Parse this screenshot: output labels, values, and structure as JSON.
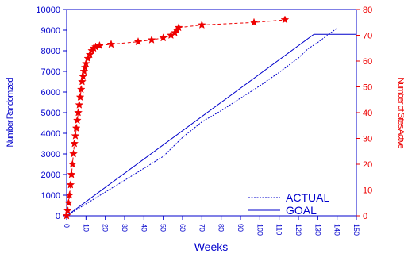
{
  "chart_data": {
    "type": "line",
    "xlabel": "Weeks",
    "ylabel_left": "Number Randomized",
    "ylabel_right": "Number of Sites Active",
    "xlim": [
      0,
      150
    ],
    "ylim_left": [
      0,
      10000
    ],
    "ylim_right": [
      0,
      80
    ],
    "x_ticks": [
      "0",
      "10",
      "20",
      "30",
      "40",
      "50",
      "60",
      "70",
      "80",
      "90",
      "100",
      "110",
      "120",
      "130",
      "140",
      "150"
    ],
    "y_ticks_left": [
      "0",
      "1000",
      "2000",
      "3000",
      "4000",
      "5000",
      "6000",
      "7000",
      "8000",
      "9000",
      "10000"
    ],
    "y_ticks_right": [
      "0",
      "10",
      "20",
      "30",
      "40",
      "50",
      "60",
      "70",
      "80"
    ],
    "legend_position": "bottom-right",
    "colors": {
      "randomized_axis": "#0000cc",
      "sites_axis": "#ee0000",
      "frame": "#0000cc"
    },
    "series": [
      {
        "name": "ACTUAL",
        "axis": "left",
        "style": "dashed",
        "color": "#0000cc",
        "x": [
          0,
          10,
          20,
          30,
          40,
          50,
          60,
          70,
          80,
          90,
          100,
          110,
          120,
          125,
          130,
          135,
          140
        ],
        "y": [
          0,
          580,
          1150,
          1720,
          2300,
          2880,
          3800,
          4550,
          5100,
          5700,
          6300,
          6950,
          7650,
          8100,
          8400,
          8750,
          9100
        ]
      },
      {
        "name": "GOAL",
        "axis": "left",
        "style": "solid",
        "color": "#0000cc",
        "x": [
          0,
          128,
          150
        ],
        "y": [
          0,
          8800,
          8800
        ]
      },
      {
        "axis": "right",
        "style": "dashed-star",
        "color": "#ee0000",
        "x": [
          0,
          0.5,
          1,
          1.5,
          2,
          2.5,
          3,
          3.5,
          4,
          4.5,
          5,
          5.5,
          6,
          6.5,
          7,
          7.5,
          8,
          8.5,
          9,
          9.5,
          10,
          11,
          12,
          13,
          14,
          15,
          17,
          23,
          37,
          44,
          50,
          54,
          56,
          57,
          58,
          70,
          97,
          113
        ],
        "y": [
          0,
          2,
          5,
          8,
          12,
          16,
          20,
          24,
          28,
          31,
          34,
          37,
          40,
          43,
          46,
          49,
          52,
          54,
          56,
          57.5,
          59,
          61,
          62.5,
          64,
          65,
          65.5,
          66,
          66.5,
          67.5,
          68.2,
          69,
          70,
          71,
          72,
          73,
          74,
          75,
          76
        ]
      }
    ]
  }
}
